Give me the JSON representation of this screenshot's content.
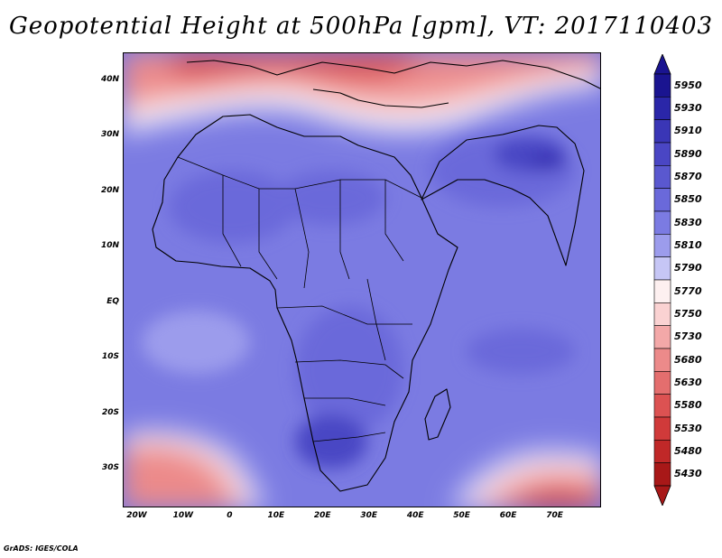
{
  "title": "Geopotential Height at 500hPa [gpm], VT: 2017110403",
  "map": {
    "region": "Africa",
    "variable": "Geopotential Height at 500hPa",
    "units": "gpm",
    "lon_range": [
      -23,
      80
    ],
    "lat_range": [
      -37,
      45
    ],
    "y_ticks": [
      {
        "lat": 40,
        "label": "40N"
      },
      {
        "lat": 30,
        "label": "30N"
      },
      {
        "lat": 20,
        "label": "20N"
      },
      {
        "lat": 10,
        "label": "10N"
      },
      {
        "lat": 0,
        "label": "EQ"
      },
      {
        "lat": -10,
        "label": "10S"
      },
      {
        "lat": -20,
        "label": "20S"
      },
      {
        "lat": -30,
        "label": "30S"
      }
    ],
    "x_ticks": [
      {
        "lon": -20,
        "label": "20W"
      },
      {
        "lon": -10,
        "label": "10W"
      },
      {
        "lon": 0,
        "label": "0"
      },
      {
        "lon": 10,
        "label": "10E"
      },
      {
        "lon": 20,
        "label": "20E"
      },
      {
        "lon": 30,
        "label": "30E"
      },
      {
        "lon": 40,
        "label": "40E"
      },
      {
        "lon": 50,
        "label": "50E"
      },
      {
        "lon": 60,
        "label": "60E"
      },
      {
        "lon": 70,
        "label": "70E"
      }
    ]
  },
  "colorbar": {
    "levels": [
      {
        "value": "5950",
        "color": "#1a1490"
      },
      {
        "value": "5930",
        "color": "#2a26a8"
      },
      {
        "value": "5910",
        "color": "#3a36b6"
      },
      {
        "value": "5890",
        "color": "#4a46c4"
      },
      {
        "value": "5870",
        "color": "#5a58cf"
      },
      {
        "value": "5850",
        "color": "#6a69da"
      },
      {
        "value": "5830",
        "color": "#7b7be2"
      },
      {
        "value": "5810",
        "color": "#9c9cec"
      },
      {
        "value": "5790",
        "color": "#c6c6f5"
      },
      {
        "value": "5770",
        "color": "#fdf0f0"
      },
      {
        "value": "5750",
        "color": "#fad2d2"
      },
      {
        "value": "5730",
        "color": "#f3a8a8"
      },
      {
        "value": "5680",
        "color": "#ec8a8a"
      },
      {
        "value": "5630",
        "color": "#e46e6e"
      },
      {
        "value": "5580",
        "color": "#dc5252"
      },
      {
        "value": "5530",
        "color": "#d03a3a"
      },
      {
        "value": "5480",
        "color": "#c02828"
      },
      {
        "value": "5430",
        "color": "#a81818"
      }
    ]
  },
  "credit": "GrADS: IGES/COLA"
}
